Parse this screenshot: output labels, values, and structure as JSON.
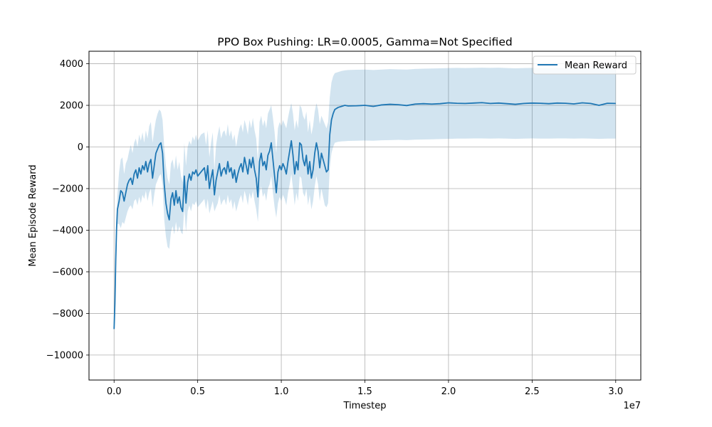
{
  "chart_data": {
    "type": "line",
    "title": "PPO Box Pushing: LR=0.0005, Gamma=Not Specified",
    "xlabel": "Timestep",
    "ylabel": "Mean Episode Reward",
    "x_offset_label": "1e7",
    "xlim": [
      -1500000,
      31500000
    ],
    "ylim": [
      -11200,
      4600
    ],
    "x_ticks": [
      0,
      5000000,
      10000000,
      15000000,
      20000000,
      25000000,
      30000000
    ],
    "x_tick_labels": [
      "0.0",
      "0.5",
      "1.0",
      "1.5",
      "2.0",
      "2.5",
      "3.0"
    ],
    "y_ticks": [
      -10000,
      -8000,
      -6000,
      -4000,
      -2000,
      0,
      2000,
      4000
    ],
    "y_tick_labels": [
      "−10000",
      "−8000",
      "−6000",
      "−4000",
      "−2000",
      "0",
      "2000",
      "4000"
    ],
    "grid": true,
    "legend_position": "top-right",
    "series": [
      {
        "name": "Mean Reward",
        "color": "#1f77b4",
        "band_color": "#1f77b4",
        "points": [
          [
            0,
            -8750,
            -8750,
            -8750
          ],
          [
            50000,
            -7500,
            -7500,
            -7500
          ],
          [
            100000,
            -5400,
            -5600,
            -5200
          ],
          [
            150000,
            -3900,
            -4400,
            -3400
          ],
          [
            200000,
            -3000,
            -3700,
            -2300
          ],
          [
            300000,
            -2600,
            -3700,
            -1200
          ],
          [
            400000,
            -2100,
            -3900,
            -600
          ],
          [
            500000,
            -2200,
            -3600,
            -500
          ],
          [
            600000,
            -2600,
            -3700,
            -1300
          ],
          [
            700000,
            -2200,
            -3400,
            -800
          ],
          [
            800000,
            -1800,
            -3100,
            -600
          ],
          [
            900000,
            -1600,
            -2900,
            -200
          ],
          [
            1000000,
            -1500,
            -2800,
            100
          ],
          [
            1100000,
            -1800,
            -3000,
            -300
          ],
          [
            1200000,
            -1300,
            -2600,
            200
          ],
          [
            1300000,
            -1100,
            -2500,
            400
          ],
          [
            1400000,
            -1500,
            -2800,
            0
          ],
          [
            1500000,
            -1000,
            -2400,
            600
          ],
          [
            1600000,
            -1300,
            -2700,
            300
          ],
          [
            1700000,
            -900,
            -2300,
            700
          ],
          [
            1800000,
            -1100,
            -2500,
            200
          ],
          [
            1900000,
            -700,
            -2100,
            800
          ],
          [
            2000000,
            -1200,
            -2600,
            400
          ],
          [
            2100000,
            -800,
            -2200,
            1000
          ],
          [
            2200000,
            -600,
            -2000,
            1200
          ],
          [
            2300000,
            -1500,
            -2900,
            200
          ],
          [
            2400000,
            -900,
            -2300,
            800
          ],
          [
            2500000,
            -300,
            -1800,
            1300
          ],
          [
            2600000,
            -100,
            -1600,
            1600
          ],
          [
            2700000,
            100,
            -1400,
            1800
          ],
          [
            2800000,
            200,
            -1300,
            1700
          ],
          [
            2900000,
            -300,
            -1800,
            1300
          ],
          [
            3000000,
            -1800,
            -3500,
            0
          ],
          [
            3100000,
            -2700,
            -4300,
            -900
          ],
          [
            3200000,
            -3200,
            -4800,
            -1500
          ],
          [
            3300000,
            -3500,
            -4900,
            -1800
          ],
          [
            3400000,
            -2500,
            -4100,
            -800
          ],
          [
            3500000,
            -2200,
            -3800,
            -600
          ],
          [
            3600000,
            -2800,
            -4200,
            -1100
          ],
          [
            3700000,
            -2100,
            -3600,
            -400
          ],
          [
            3800000,
            -2700,
            -4100,
            -1100
          ],
          [
            3900000,
            -2400,
            -3800,
            -700
          ],
          [
            4000000,
            -2900,
            -4100,
            -1400
          ],
          [
            4100000,
            -3100,
            -4200,
            -1700
          ],
          [
            4200000,
            -1400,
            -2900,
            200
          ],
          [
            4300000,
            -2700,
            -4100,
            -900
          ],
          [
            4400000,
            -1700,
            -3100,
            0
          ],
          [
            4500000,
            -1300,
            -2800,
            300
          ],
          [
            4600000,
            -1600,
            -3100,
            100
          ],
          [
            4700000,
            -1200,
            -2700,
            500
          ],
          [
            4800000,
            -1300,
            -2800,
            300
          ],
          [
            4900000,
            -1100,
            -2600,
            600
          ],
          [
            5000000,
            -1400,
            -2900,
            300
          ],
          [
            5200000,
            -1200,
            -2700,
            600
          ],
          [
            5400000,
            -1000,
            -2500,
            700
          ],
          [
            5500000,
            -1600,
            -3000,
            100
          ],
          [
            5600000,
            -900,
            -2500,
            800
          ],
          [
            5700000,
            -2000,
            -3200,
            -500
          ],
          [
            5800000,
            -1500,
            -2900,
            200
          ],
          [
            5900000,
            -1100,
            -2600,
            700
          ],
          [
            6000000,
            -2300,
            -3100,
            -1100
          ],
          [
            6100000,
            -1600,
            -2900,
            100
          ],
          [
            6200000,
            -1200,
            -2700,
            600
          ],
          [
            6300000,
            -800,
            -2300,
            1000
          ],
          [
            6400000,
            -1400,
            -2800,
            400
          ],
          [
            6500000,
            -1100,
            -2600,
            700
          ],
          [
            6600000,
            -1000,
            -2500,
            800
          ],
          [
            6700000,
            -1300,
            -2800,
            500
          ],
          [
            6800000,
            -700,
            -2300,
            1100
          ],
          [
            6900000,
            -1200,
            -2700,
            500
          ],
          [
            7000000,
            -1000,
            -2500,
            800
          ],
          [
            7100000,
            -1500,
            -3000,
            300
          ],
          [
            7200000,
            -1100,
            -2600,
            600
          ],
          [
            7300000,
            -1700,
            -3100,
            0
          ],
          [
            7400000,
            -1300,
            -2800,
            500
          ],
          [
            7500000,
            -1000,
            -2500,
            900
          ],
          [
            7600000,
            -800,
            -2300,
            1100
          ],
          [
            7700000,
            -1200,
            -2700,
            700
          ],
          [
            7800000,
            -500,
            -2100,
            1300
          ],
          [
            7900000,
            -900,
            -2400,
            1000
          ],
          [
            8000000,
            -1300,
            -2800,
            600
          ],
          [
            8100000,
            -600,
            -2200,
            1300
          ],
          [
            8200000,
            -1000,
            -2500,
            900
          ],
          [
            8300000,
            -500,
            -2100,
            1400
          ],
          [
            8400000,
            -1100,
            -2600,
            800
          ],
          [
            8500000,
            -1500,
            -3000,
            400
          ],
          [
            8600000,
            -2400,
            -3600,
            -700
          ],
          [
            8700000,
            -700,
            -2200,
            1200
          ],
          [
            8800000,
            -300,
            -1900,
            1500
          ],
          [
            8900000,
            -900,
            -2400,
            1000
          ],
          [
            9000000,
            -700,
            -2200,
            1300
          ],
          [
            9100000,
            -1100,
            -2600,
            900
          ],
          [
            9200000,
            -400,
            -2000,
            1600
          ],
          [
            9300000,
            -200,
            -1800,
            1800
          ],
          [
            9400000,
            200,
            -1400,
            2000
          ],
          [
            9500000,
            -600,
            -2200,
            1400
          ],
          [
            9600000,
            -1400,
            -2900,
            700
          ],
          [
            9700000,
            -2200,
            -3400,
            -300
          ],
          [
            9800000,
            -1200,
            -2700,
            900
          ],
          [
            9900000,
            -900,
            -2400,
            1200
          ],
          [
            10000000,
            -1100,
            -2600,
            1000
          ],
          [
            10100000,
            -800,
            -2300,
            1300
          ],
          [
            10200000,
            -1000,
            -2500,
            1100
          ],
          [
            10300000,
            -1300,
            -2800,
            900
          ],
          [
            10400000,
            -700,
            -2200,
            1400
          ],
          [
            10500000,
            -200,
            -1800,
            1800
          ],
          [
            10600000,
            300,
            -1300,
            2100
          ],
          [
            10700000,
            -400,
            -2000,
            1600
          ],
          [
            10800000,
            -1300,
            -2800,
            800
          ],
          [
            10900000,
            -700,
            -2200,
            1300
          ],
          [
            11000000,
            -1100,
            -2600,
            900
          ],
          [
            11100000,
            200,
            -1400,
            2000
          ],
          [
            11200000,
            100,
            -1500,
            1900
          ],
          [
            11300000,
            -600,
            -2200,
            1500
          ],
          [
            11400000,
            -900,
            -2400,
            1300
          ],
          [
            11500000,
            -400,
            -2000,
            1700
          ],
          [
            11600000,
            -1300,
            -2800,
            700
          ],
          [
            11700000,
            -700,
            -2300,
            1300
          ],
          [
            11800000,
            -1500,
            -3000,
            600
          ],
          [
            11900000,
            -1100,
            -2600,
            1000
          ],
          [
            12000000,
            -300,
            -1900,
            1700
          ],
          [
            12100000,
            200,
            -1400,
            2100
          ],
          [
            12200000,
            -200,
            -1800,
            1800
          ],
          [
            12300000,
            -1000,
            -2600,
            1100
          ],
          [
            12400000,
            -300,
            -2000,
            1500
          ],
          [
            12500000,
            -600,
            -2400,
            1300
          ],
          [
            12600000,
            -900,
            -2800,
            1100
          ],
          [
            12700000,
            -1200,
            -2900,
            900
          ],
          [
            12800000,
            -1100,
            -2700,
            1200
          ],
          [
            12900000,
            600,
            -1000,
            2400
          ],
          [
            13000000,
            1300,
            -300,
            3100
          ],
          [
            13100000,
            1600,
            0,
            3400
          ],
          [
            13200000,
            1800,
            200,
            3550
          ],
          [
            13400000,
            1900,
            250,
            3600
          ],
          [
            13600000,
            1950,
            270,
            3650
          ],
          [
            13800000,
            2000,
            280,
            3680
          ],
          [
            14000000,
            1970,
            290,
            3700
          ],
          [
            14500000,
            1980,
            300,
            3710
          ],
          [
            15000000,
            2000,
            310,
            3720
          ],
          [
            15500000,
            1950,
            300,
            3700
          ],
          [
            16000000,
            2020,
            320,
            3720
          ],
          [
            16500000,
            2050,
            330,
            3740
          ],
          [
            17000000,
            2030,
            340,
            3730
          ],
          [
            17500000,
            1990,
            330,
            3720
          ],
          [
            18000000,
            2060,
            350,
            3750
          ],
          [
            18500000,
            2080,
            360,
            3760
          ],
          [
            19000000,
            2060,
            370,
            3770
          ],
          [
            19500000,
            2080,
            380,
            3780
          ],
          [
            20000000,
            2120,
            390,
            3790
          ],
          [
            20500000,
            2100,
            400,
            3800
          ],
          [
            21000000,
            2090,
            400,
            3790
          ],
          [
            21500000,
            2110,
            410,
            3800
          ],
          [
            22000000,
            2130,
            410,
            3810
          ],
          [
            22500000,
            2090,
            400,
            3800
          ],
          [
            23000000,
            2110,
            410,
            3810
          ],
          [
            23500000,
            2080,
            400,
            3790
          ],
          [
            24000000,
            2050,
            390,
            3780
          ],
          [
            24500000,
            2090,
            400,
            3790
          ],
          [
            25000000,
            2110,
            410,
            3800
          ],
          [
            25500000,
            2100,
            400,
            3790
          ],
          [
            26000000,
            2080,
            400,
            3790
          ],
          [
            26500000,
            2110,
            410,
            3800
          ],
          [
            27000000,
            2100,
            410,
            3800
          ],
          [
            27500000,
            2070,
            400,
            3790
          ],
          [
            28000000,
            2120,
            410,
            3800
          ],
          [
            28500000,
            2090,
            400,
            3790
          ],
          [
            29000000,
            2000,
            390,
            3780
          ],
          [
            29500000,
            2100,
            400,
            3790
          ],
          [
            30000000,
            2090,
            400,
            3790
          ]
        ]
      }
    ]
  }
}
